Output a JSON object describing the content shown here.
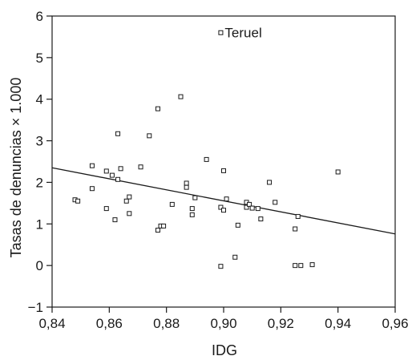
{
  "chart_data": {
    "type": "scatter",
    "title": "",
    "xlabel": "IDG",
    "ylabel": "Tasas de denuncias × 1.000",
    "xlim": [
      0.84,
      0.96
    ],
    "ylim": [
      -1,
      6
    ],
    "grid": false,
    "x_ticks": [
      0.84,
      0.86,
      0.88,
      0.9,
      0.92,
      0.94,
      0.96
    ],
    "x_tick_labels": [
      "0,84",
      "0,86",
      "0,88",
      "0,90",
      "0,92",
      "0,94",
      "0,96"
    ],
    "y_ticks": [
      -1,
      0,
      1,
      2,
      3,
      4,
      5,
      6
    ],
    "y_tick_labels": [
      "−1",
      "0",
      "1",
      "2",
      "3",
      "4",
      "5",
      "6"
    ],
    "points": [
      {
        "x": 0.848,
        "y": 1.58
      },
      {
        "x": 0.849,
        "y": 1.55
      },
      {
        "x": 0.854,
        "y": 2.4
      },
      {
        "x": 0.854,
        "y": 1.85
      },
      {
        "x": 0.859,
        "y": 2.27
      },
      {
        "x": 0.859,
        "y": 1.37
      },
      {
        "x": 0.861,
        "y": 2.17
      },
      {
        "x": 0.862,
        "y": 1.1
      },
      {
        "x": 0.863,
        "y": 3.17
      },
      {
        "x": 0.863,
        "y": 2.07
      },
      {
        "x": 0.864,
        "y": 2.33
      },
      {
        "x": 0.866,
        "y": 1.55
      },
      {
        "x": 0.867,
        "y": 1.65
      },
      {
        "x": 0.867,
        "y": 1.25
      },
      {
        "x": 0.871,
        "y": 2.37
      },
      {
        "x": 0.874,
        "y": 3.12
      },
      {
        "x": 0.877,
        "y": 3.77
      },
      {
        "x": 0.877,
        "y": 0.85
      },
      {
        "x": 0.878,
        "y": 0.95
      },
      {
        "x": 0.879,
        "y": 0.95
      },
      {
        "x": 0.882,
        "y": 1.47
      },
      {
        "x": 0.885,
        "y": 4.06
      },
      {
        "x": 0.887,
        "y": 1.98
      },
      {
        "x": 0.887,
        "y": 1.88
      },
      {
        "x": 0.889,
        "y": 1.37
      },
      {
        "x": 0.889,
        "y": 1.22
      },
      {
        "x": 0.89,
        "y": 1.63
      },
      {
        "x": 0.894,
        "y": 2.55
      },
      {
        "x": 0.899,
        "y": 1.4
      },
      {
        "x": 0.899,
        "y": -0.02
      },
      {
        "x": 0.9,
        "y": 2.28
      },
      {
        "x": 0.9,
        "y": 1.33
      },
      {
        "x": 0.901,
        "y": 1.6
      },
      {
        "x": 0.904,
        "y": 0.2
      },
      {
        "x": 0.905,
        "y": 0.97
      },
      {
        "x": 0.908,
        "y": 1.52
      },
      {
        "x": 0.908,
        "y": 1.4
      },
      {
        "x": 0.909,
        "y": 1.47
      },
      {
        "x": 0.91,
        "y": 1.38
      },
      {
        "x": 0.912,
        "y": 1.37
      },
      {
        "x": 0.913,
        "y": 1.12
      },
      {
        "x": 0.916,
        "y": 2.0
      },
      {
        "x": 0.918,
        "y": 1.52
      },
      {
        "x": 0.925,
        "y": 0.88
      },
      {
        "x": 0.925,
        "y": 0.0
      },
      {
        "x": 0.926,
        "y": 1.18
      },
      {
        "x": 0.927,
        "y": 0.0
      },
      {
        "x": 0.931,
        "y": 0.02
      },
      {
        "x": 0.94,
        "y": 2.25
      },
      {
        "x": 0.899,
        "y": 5.6
      }
    ],
    "regression_line": {
      "x": [
        0.84,
        0.96
      ],
      "y": [
        2.35,
        0.76
      ]
    },
    "annotations": [
      {
        "text": "Teruel",
        "x": 0.899,
        "y": 5.6
      }
    ]
  }
}
